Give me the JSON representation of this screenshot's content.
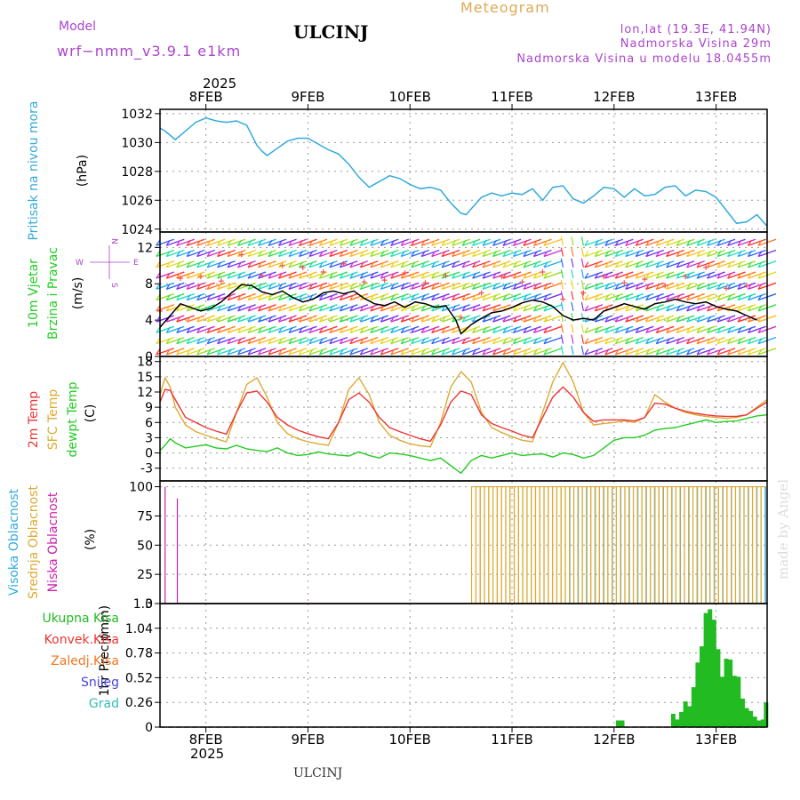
{
  "header": {
    "model_label": "Model",
    "model_name": "wrf−nmm_v3.9.1  e1km",
    "station": "ULCINJ",
    "product": "Meteogram",
    "lonlat": "lon,lat (19.3E, 41.94N)",
    "elevation": "Nadmorska Visina 29m",
    "model_elevation": "Nadmorska Visina u modelu 18.0455m",
    "footer_station": "ULCINJ",
    "watermark": "made by Angel",
    "year": "2025"
  },
  "colors": {
    "pressure": "#33aadd",
    "temp2m": "#ee3333",
    "sfc_temp": "#ddaa33",
    "dewpt": "#22cc22",
    "cloud_high": "#33aadd",
    "cloud_mid": "#ddaa33",
    "cloud_low": "#cc22aa",
    "precip_total": "#22bb22",
    "purple_text": "#aa44cc",
    "orange_text": "#ddaa55"
  },
  "chart_data": [
    {
      "id": "pressure",
      "type": "line",
      "ylabel_1": "Pritisak na nivou mora",
      "ylabel_2": "(hPa)",
      "ylim": [
        1023.8,
        1032.3
      ],
      "yticks": [
        "1024",
        "1026",
        "1028",
        "1030",
        "1032"
      ],
      "xlim": [
        7.55,
        13.5
      ],
      "xticks": [
        "8FEB",
        "9FEB",
        "10FEB",
        "11FEB",
        "12FEB",
        "13FEB"
      ],
      "grid": true,
      "series": [
        {
          "x": [
            7.55,
            7.6,
            7.7,
            7.8,
            7.9,
            8.0,
            8.1,
            8.2,
            8.3,
            8.4,
            8.5,
            8.55,
            8.6,
            8.7,
            8.8,
            8.9,
            9.0,
            9.1,
            9.2,
            9.3,
            9.4,
            9.5,
            9.6,
            9.7,
            9.8,
            9.9,
            10.0,
            10.1,
            10.2,
            10.3,
            10.4,
            10.5,
            10.55,
            10.6,
            10.7,
            10.8,
            10.9,
            11.0,
            11.1,
            11.2,
            11.3,
            11.4,
            11.5,
            11.6,
            11.7,
            11.8,
            11.9,
            12.0,
            12.1,
            12.2,
            12.3,
            12.4,
            12.5,
            12.6,
            12.7,
            12.8,
            12.9,
            13.0,
            13.1,
            13.2,
            13.3,
            13.4,
            13.5
          ],
          "y": [
            1031.0,
            1030.8,
            1030.2,
            1030.8,
            1031.4,
            1031.7,
            1031.5,
            1031.4,
            1031.5,
            1031.2,
            1029.8,
            1029.4,
            1029.1,
            1029.6,
            1030.1,
            1030.3,
            1030.3,
            1029.9,
            1029.5,
            1029.2,
            1028.5,
            1027.6,
            1026.9,
            1027.3,
            1027.7,
            1027.5,
            1027.1,
            1026.8,
            1026.9,
            1026.7,
            1025.8,
            1025.1,
            1025.0,
            1025.4,
            1026.2,
            1026.5,
            1026.3,
            1026.5,
            1026.4,
            1026.8,
            1026.0,
            1026.9,
            1027.0,
            1026.1,
            1025.8,
            1026.3,
            1026.9,
            1026.8,
            1026.2,
            1026.8,
            1026.3,
            1026.4,
            1026.9,
            1027.0,
            1026.3,
            1026.7,
            1026.6,
            1026.2,
            1025.3,
            1024.4,
            1024.5,
            1025.0,
            1024.2
          ]
        }
      ]
    },
    {
      "id": "wind",
      "type": "line",
      "ylabel_1": "10m Vjetar",
      "ylabel_2": "Brzina i Pravac",
      "ylabel_3": "(m/s)",
      "compass_n": "N",
      "compass_s": "S",
      "compass_w": "W",
      "compass_e": "E",
      "ylim": [
        0,
        13.7
      ],
      "yticks": [
        "0",
        "4",
        "8",
        "12"
      ],
      "grid": true,
      "series": [
        {
          "name": "",
          "x": [
            7.55,
            7.65,
            7.75,
            7.85,
            7.95,
            8.05,
            8.15,
            8.25,
            8.35,
            8.45,
            8.55,
            8.65,
            8.75,
            8.85,
            8.95,
            9.05,
            9.15,
            9.25,
            9.35,
            9.45,
            9.55,
            9.65,
            9.75,
            9.85,
            9.95,
            10.05,
            10.15,
            10.25,
            10.35,
            10.45,
            10.5,
            10.6,
            10.7,
            10.8,
            10.9,
            11.0,
            11.1,
            11.2,
            11.3,
            11.4,
            11.5,
            11.6,
            11.7,
            11.8,
            11.9,
            12.0,
            12.1,
            12.2,
            12.3,
            12.4,
            12.5,
            12.6,
            12.7,
            12.8,
            12.9,
            13.0,
            13.1,
            13.2,
            13.3,
            13.4
          ],
          "y": [
            3.2,
            4.5,
            5.8,
            5.4,
            5.0,
            5.3,
            6.0,
            7.0,
            7.9,
            7.8,
            7.1,
            6.8,
            7.2,
            6.5,
            6.0,
            6.3,
            7.0,
            7.2,
            6.9,
            7.2,
            6.4,
            5.8,
            5.6,
            6.0,
            5.4,
            6.0,
            5.8,
            5.4,
            5.6,
            4.0,
            2.5,
            3.5,
            4.2,
            4.8,
            5.0,
            5.4,
            5.9,
            6.2,
            6.0,
            5.5,
            4.5,
            4.0,
            4.2,
            4.0,
            5.0,
            5.4,
            5.8,
            5.5,
            5.2,
            5.8,
            6.0,
            6.3,
            6.0,
            5.8,
            6.0,
            5.5,
            5.2,
            5.0,
            4.5,
            4.0
          ]
        }
      ]
    },
    {
      "id": "temperature",
      "type": "line",
      "ylabel_1": "2m Temp",
      "ylabel_2": "SFC Temp",
      "ylabel_3": "dewpt Temp",
      "ylabel_4": "(C)",
      "ylim": [
        -5.5,
        19
      ],
      "yticks": [
        "-3",
        "0",
        "3",
        "6",
        "9",
        "12",
        "15",
        "18"
      ],
      "grid": true,
      "series": [
        {
          "name": "2m Temp",
          "x": [
            7.55,
            7.6,
            7.65,
            7.7,
            7.8,
            7.9,
            8.0,
            8.1,
            8.2,
            8.3,
            8.4,
            8.5,
            8.6,
            8.7,
            8.8,
            8.9,
            9.0,
            9.1,
            9.2,
            9.3,
            9.4,
            9.5,
            9.6,
            9.7,
            9.8,
            9.9,
            10.0,
            10.1,
            10.2,
            10.3,
            10.4,
            10.5,
            10.6,
            10.7,
            10.8,
            10.9,
            11.0,
            11.1,
            11.2,
            11.3,
            11.4,
            11.5,
            11.6,
            11.7,
            11.8,
            11.9,
            12.0,
            12.1,
            12.2,
            12.3,
            12.4,
            12.5,
            12.6,
            12.7,
            12.8,
            12.9,
            13.0,
            13.1,
            13.2,
            13.3,
            13.4,
            13.5
          ],
          "y": [
            10,
            12.5,
            12.3,
            10.5,
            7,
            6,
            5,
            4.3,
            3.7,
            8,
            11.8,
            12.2,
            10,
            7,
            5.5,
            4.5,
            3.8,
            3.2,
            2.8,
            6,
            10.5,
            11.8,
            10,
            7,
            5,
            4.2,
            3.5,
            2.8,
            2.3,
            5.5,
            10,
            12.2,
            11.5,
            7.5,
            5.8,
            5,
            4.3,
            3.5,
            3,
            7,
            11,
            13,
            11,
            8,
            6.2,
            6.5,
            6.5,
            6.5,
            6.3,
            7,
            9.8,
            9.6,
            8.8,
            8.2,
            7.8,
            7.5,
            7.3,
            7.2,
            7.2,
            7.5,
            8.8,
            10
          ]
        },
        {
          "name": "SFC Temp",
          "x": [
            7.55,
            7.6,
            7.65,
            7.7,
            7.8,
            7.9,
            8.0,
            8.1,
            8.2,
            8.3,
            8.4,
            8.5,
            8.6,
            8.7,
            8.8,
            8.9,
            9.0,
            9.1,
            9.2,
            9.3,
            9.4,
            9.5,
            9.6,
            9.7,
            9.8,
            9.9,
            10.0,
            10.1,
            10.2,
            10.3,
            10.4,
            10.5,
            10.6,
            10.7,
            10.8,
            10.9,
            11.0,
            11.1,
            11.2,
            11.3,
            11.4,
            11.5,
            11.6,
            11.7,
            11.8,
            11.9,
            12.0,
            12.1,
            12.2,
            12.3,
            12.4,
            12.5,
            12.6,
            12.7,
            12.8,
            12.9,
            13.0,
            13.1,
            13.2,
            13.3,
            13.4,
            13.5
          ],
          "y": [
            11.5,
            14.8,
            13,
            9,
            5.5,
            4.2,
            3.5,
            2.8,
            2.2,
            8,
            13.5,
            14.8,
            11,
            6,
            3.8,
            2.8,
            2.2,
            1.8,
            1.5,
            6,
            12.5,
            14.8,
            11.5,
            6,
            3.5,
            2.5,
            1.8,
            1.4,
            1.2,
            6,
            13,
            16,
            14,
            8,
            5,
            4,
            3.2,
            2.5,
            2.2,
            8,
            14,
            17.8,
            14,
            8,
            5.5,
            5.8,
            6,
            6.3,
            6,
            7,
            11.5,
            10,
            8.8,
            8,
            7.5,
            7.2,
            7,
            6.8,
            7,
            7.5,
            9,
            10.5
          ]
        },
        {
          "name": "dewpt Temp",
          "x": [
            7.55,
            7.6,
            7.65,
            7.7,
            7.8,
            7.9,
            8.0,
            8.1,
            8.2,
            8.3,
            8.4,
            8.5,
            8.6,
            8.7,
            8.8,
            8.9,
            9.0,
            9.1,
            9.2,
            9.3,
            9.4,
            9.5,
            9.6,
            9.7,
            9.8,
            9.9,
            10.0,
            10.1,
            10.2,
            10.3,
            10.4,
            10.5,
            10.6,
            10.7,
            10.8,
            10.9,
            11.0,
            11.1,
            11.2,
            11.3,
            11.4,
            11.5,
            11.6,
            11.7,
            11.8,
            11.9,
            12.0,
            12.1,
            12.2,
            12.3,
            12.4,
            12.5,
            12.6,
            12.7,
            12.8,
            12.9,
            13.0,
            13.1,
            13.2,
            13.3,
            13.4,
            13.5
          ],
          "y": [
            0.5,
            1.5,
            2.8,
            2,
            1,
            1.3,
            1.6,
            1,
            0.8,
            1.5,
            0.8,
            0.5,
            0.3,
            1,
            0,
            -0.5,
            -0.3,
            0.2,
            -0.2,
            -0.4,
            -0.6,
            0.2,
            -0.5,
            -1,
            0,
            -0.2,
            -0.5,
            -1,
            -1.5,
            -1,
            -2.5,
            -4,
            -1.5,
            -0.5,
            -1,
            -0.5,
            0,
            -0.5,
            -0.3,
            -0.2,
            -0.8,
            0,
            -0.3,
            -1,
            -0.5,
            1,
            2.5,
            3,
            3,
            3.5,
            4.5,
            4.8,
            5,
            5.5,
            6,
            6.5,
            6,
            6.2,
            6.3,
            6.8,
            7.3,
            7.5
          ]
        }
      ]
    },
    {
      "id": "clouds",
      "type": "bar",
      "ylabel_1": "Visoka Oblacnost",
      "ylabel_2": "Srednja Oblacnost",
      "ylabel_3": "Niska Oblacnost",
      "ylabel_4": "(%)",
      "ylim": [
        0,
        105
      ],
      "yticks": [
        "0",
        "25",
        "50",
        "75",
        "100"
      ],
      "grid": true,
      "low_bars": [
        {
          "x": 7.6,
          "y": 100
        },
        {
          "x": 7.72,
          "y": 90
        }
      ],
      "mid_bars_start": 10.63,
      "mid_bars_end": 13.5,
      "mid_bars_step": 0.0417,
      "mid_bars_value": 100,
      "high_bars_start": 11.5,
      "high_bars_end": 13.5,
      "high_bars_value": 100
    },
    {
      "id": "precip",
      "type": "bar",
      "ylabel_1": "1hr Precip",
      "ylabel_2": "(mm)",
      "legend": [
        "Ukupna Kisa",
        "Konvek.Kisa",
        "Zaledj.Kisa",
        "Snijeg",
        "Grad"
      ],
      "legend_colors": [
        "#22bb22",
        "#ee3333",
        "#ee7722",
        "#4444dd",
        "#33bbbb"
      ],
      "ylim": [
        0,
        1.3
      ],
      "yticks": [
        "0",
        "0.26",
        "0.52",
        "0.78",
        "1.04",
        "1.3"
      ],
      "grid": true,
      "bars": [
        {
          "x": 12.04,
          "y": 0.07
        },
        {
          "x": 12.08,
          "y": 0.07
        },
        {
          "x": 12.58,
          "y": 0.14
        },
        {
          "x": 12.62,
          "y": 0.08
        },
        {
          "x": 12.66,
          "y": 0.16
        },
        {
          "x": 12.7,
          "y": 0.27
        },
        {
          "x": 12.74,
          "y": 0.22
        },
        {
          "x": 12.78,
          "y": 0.42
        },
        {
          "x": 12.82,
          "y": 0.68
        },
        {
          "x": 12.86,
          "y": 0.85
        },
        {
          "x": 12.9,
          "y": 1.2
        },
        {
          "x": 12.94,
          "y": 1.24
        },
        {
          "x": 12.98,
          "y": 1.13
        },
        {
          "x": 13.02,
          "y": 0.82
        },
        {
          "x": 13.06,
          "y": 0.53
        },
        {
          "x": 13.1,
          "y": 0.72
        },
        {
          "x": 13.14,
          "y": 0.71
        },
        {
          "x": 13.18,
          "y": 0.54
        },
        {
          "x": 13.22,
          "y": 0.53
        },
        {
          "x": 13.26,
          "y": 0.3
        },
        {
          "x": 13.3,
          "y": 0.2
        },
        {
          "x": 13.34,
          "y": 0.17
        },
        {
          "x": 13.38,
          "y": 0.11
        },
        {
          "x": 13.42,
          "y": 0.07
        },
        {
          "x": 13.46,
          "y": 0.08
        },
        {
          "x": 13.49,
          "y": 0.26
        }
      ]
    }
  ]
}
